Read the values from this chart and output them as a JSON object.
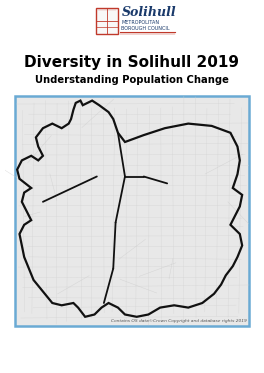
{
  "title": "Diversity in Solihull 2019",
  "subtitle": "Understanding Population Change",
  "background_color": "#ffffff",
  "title_fontsize": 11.0,
  "subtitle_fontsize": 7.2,
  "title_color": "#000000",
  "subtitle_color": "#000000",
  "map_border_color": "#6aaad4",
  "map_border_lw": 1.8,
  "logo_text_main": "Solihull",
  "logo_text_sub1": "METROPOLITAN",
  "logo_text_sub2": "BOROUGH COUNCIL",
  "logo_color_main": "#1a3a6b",
  "logo_color_accent": "#c0392b",
  "caption": "Contains OS data©Crown Copyright and database rights 2019",
  "caption_fontsize": 3.2,
  "map_bg": "#e8e8e8",
  "map_road_color": "#cccccc",
  "boundary_color": "#111111",
  "boundary_lw": 1.6,
  "ward_lw": 1.3,
  "ward_color": "#111111"
}
